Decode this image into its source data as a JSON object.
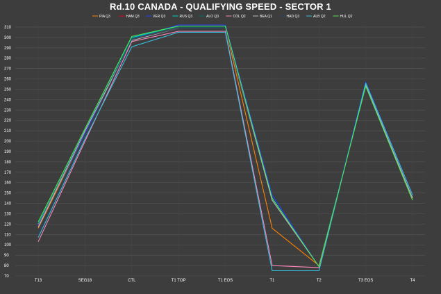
{
  "chart_data": {
    "type": "line",
    "title": "Rd.10 CANADA - QUALIFYING SPEED - SECTOR 1",
    "xlabel": "",
    "ylabel": "",
    "categories": [
      "T13",
      "SEG18",
      "CTL",
      "T1 TOP",
      "T1 EOS",
      "T1",
      "T2",
      "T3 EOS",
      "T4"
    ],
    "yticks": [
      70,
      80,
      90,
      100,
      110,
      120,
      130,
      140,
      150,
      160,
      170,
      180,
      190,
      200,
      210,
      220,
      230,
      240,
      250,
      260,
      270,
      280,
      290,
      300,
      310
    ],
    "ylim": [
      70,
      312
    ],
    "grid": true,
    "legend_position": "top-center",
    "series": [
      {
        "name": "PIA Q3",
        "color": "#ff8000",
        "values": [
          116,
          208,
          298,
          310,
          310,
          116,
          80,
          254,
          145
        ]
      },
      {
        "name": "HAM Q3",
        "color": "#e8002d",
        "values": [
          119,
          210,
          298,
          310,
          310,
          145,
          79,
          254,
          145
        ]
      },
      {
        "name": "VER Q3",
        "color": "#1e41ff",
        "values": [
          118,
          208,
          299,
          312,
          312,
          148,
          79,
          257,
          148
        ]
      },
      {
        "name": "RUS Q3",
        "color": "#00d2be",
        "values": [
          120,
          211,
          300,
          311,
          311,
          145,
          79,
          255,
          147
        ]
      },
      {
        "name": "ALO Q3",
        "color": "#006f62",
        "values": [
          121,
          211,
          299,
          310,
          310,
          144,
          79,
          254,
          146
        ]
      },
      {
        "name": "COL Q2",
        "color": "#ff87bc",
        "values": [
          103,
          200,
          296,
          306,
          306,
          80,
          78,
          255,
          146
        ]
      },
      {
        "name": "BEA Q1",
        "color": "#b6babd",
        "values": [
          117,
          210,
          297,
          309,
          309,
          143,
          79,
          254,
          145
        ]
      },
      {
        "name": "HAD Q3",
        "color": "#2b4562",
        "values": [
          110,
          205,
          298,
          309,
          309,
          146,
          79,
          256,
          147
        ]
      },
      {
        "name": "ALB Q2",
        "color": "#37bedd",
        "values": [
          107,
          202,
          291,
          305,
          305,
          75,
          75,
          256,
          148
        ]
      },
      {
        "name": "HUL Q2",
        "color": "#52e252",
        "values": [
          122,
          212,
          301,
          311,
          311,
          145,
          79,
          253,
          143
        ]
      }
    ]
  }
}
